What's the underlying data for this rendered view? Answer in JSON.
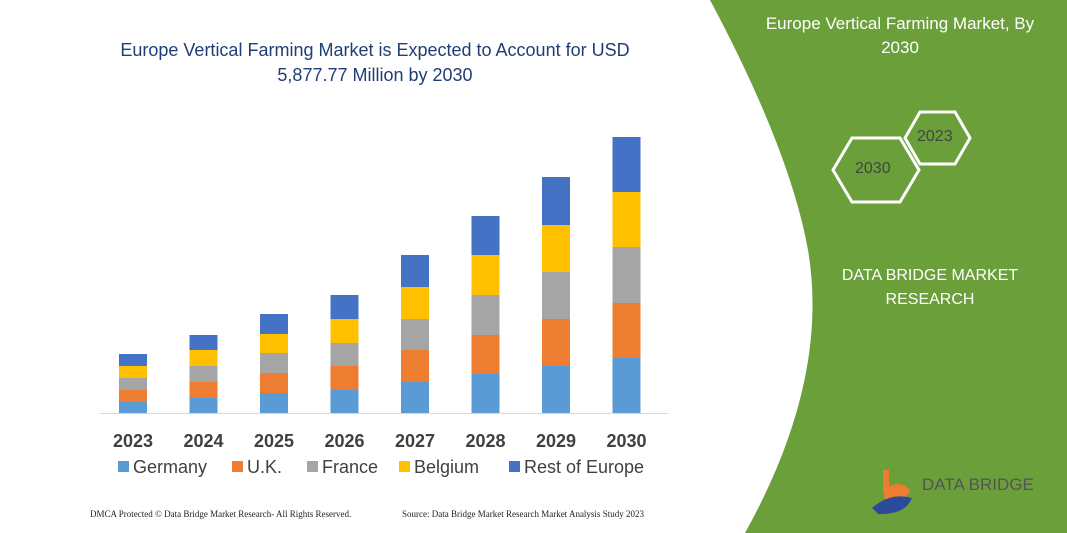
{
  "title": "Europe Vertical Farming Market is Expected to Account for USD 5,877.77 Million by 2030",
  "side_panel": {
    "title": "Europe Vertical Farming Market, By 2030",
    "hex_labels": [
      "2023",
      "2030"
    ],
    "brand": "DATA BRIDGE MARKET RESEARCH",
    "logo_text": "DATA BRIDGE",
    "color": "#6a9f3a"
  },
  "footer": {
    "left": "DMCA Protected © Data Bridge Market Research- All Rights Reserved.",
    "right": "Source: Data Bridge Market Research Market Analysis Study 2023"
  },
  "chart_data": {
    "type": "bar",
    "stacked": true,
    "categories": [
      "2023",
      "2024",
      "2025",
      "2026",
      "2027",
      "2028",
      "2029",
      "2030"
    ],
    "series": [
      {
        "name": "Germany",
        "color": "#5b9bd5",
        "values": [
          11,
          15,
          20,
          23,
          31,
          39,
          47,
          55
        ]
      },
      {
        "name": "U.K.",
        "color": "#ed7d31",
        "values": [
          12,
          16,
          20,
          24,
          32,
          39,
          47,
          55
        ]
      },
      {
        "name": "France",
        "color": "#a5a5a5",
        "values": [
          12,
          16,
          20,
          23,
          31,
          40,
          47,
          56
        ]
      },
      {
        "name": "Belgium",
        "color": "#ffc000",
        "values": [
          12,
          16,
          19,
          24,
          32,
          40,
          47,
          55
        ]
      },
      {
        "name": "Rest of Europe",
        "color": "#4472c4",
        "values": [
          12,
          15,
          20,
          24,
          32,
          39,
          48,
          55
        ]
      }
    ],
    "ylim": [
      0,
      280
    ],
    "legend": "bottom",
    "grid": false,
    "y_axis_shown": false
  }
}
